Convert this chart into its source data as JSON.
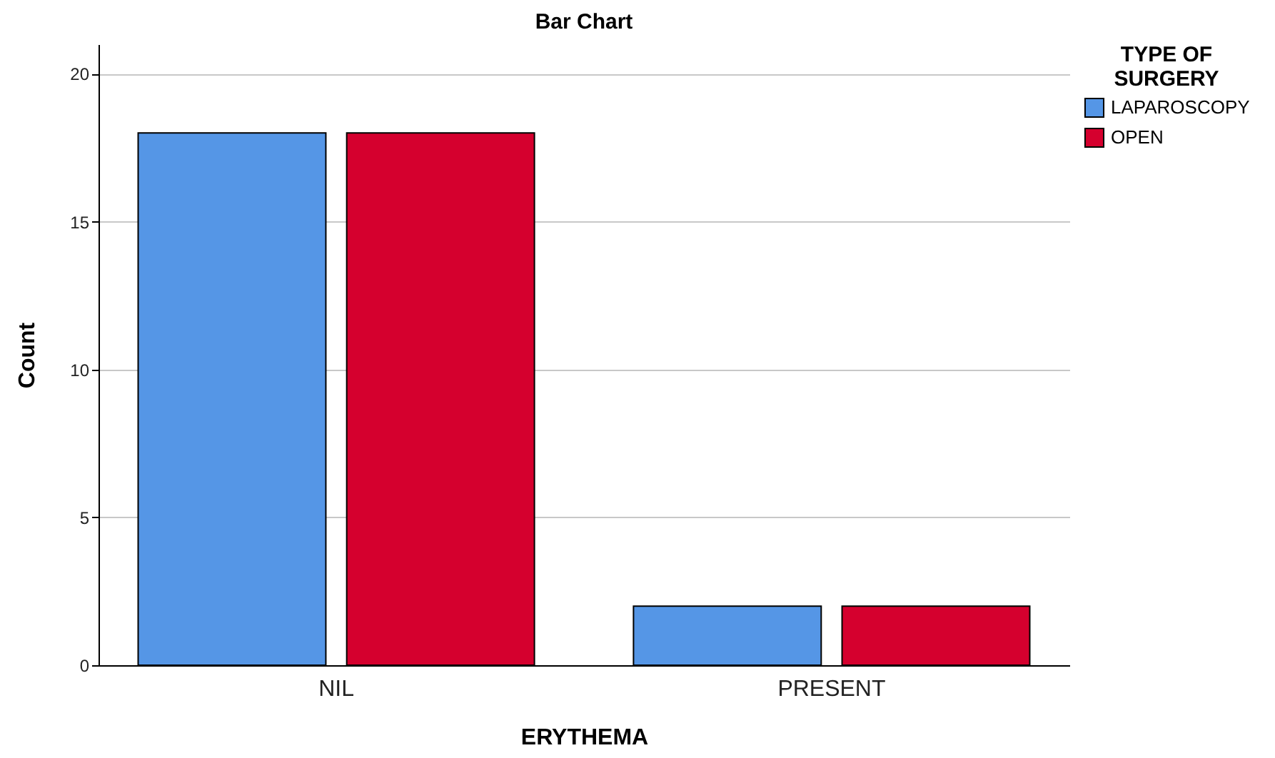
{
  "chart_data": {
    "type": "bar",
    "title": "Bar Chart",
    "xlabel": "ERYTHEMA",
    "ylabel": "Count",
    "legend_title": "TYPE OF SURGERY",
    "categories": [
      "NIL",
      "PRESENT"
    ],
    "series": [
      {
        "name": "LAPAROSCOPY",
        "color": "#5596e6",
        "values": [
          18,
          2
        ]
      },
      {
        "name": "OPEN",
        "color": "#d5002e",
        "values": [
          18,
          2
        ]
      }
    ],
    "ylim": [
      0,
      21
    ],
    "yticks": [
      0,
      5,
      10,
      15,
      20
    ],
    "grid": "y",
    "legend": "top right"
  }
}
